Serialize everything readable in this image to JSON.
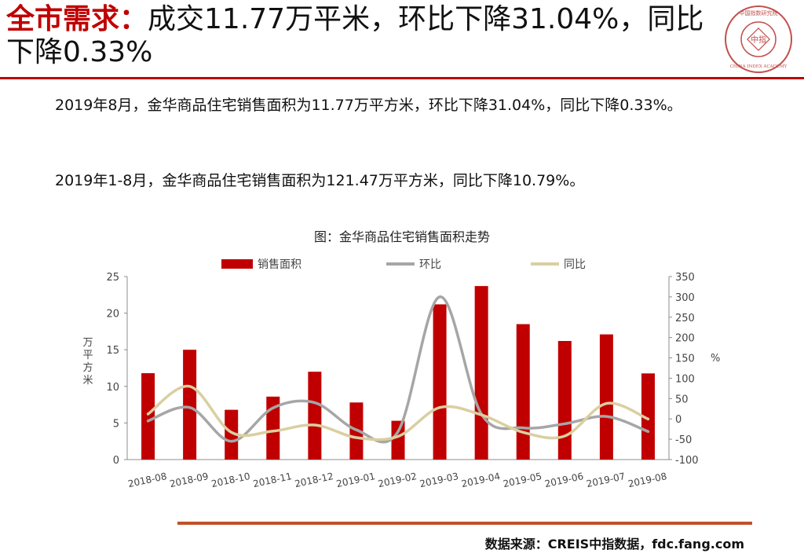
{
  "header": {
    "title_red": "全市需求：",
    "title_rest": "成交11.77万平米，环比下降31.04%，同比下降0.33%"
  },
  "logo": {
    "center_text": "中指",
    "ring_text": "CHINA INDEX ACADEMY",
    "top_text": "中国指数研究院"
  },
  "body": {
    "para1": "2019年8月，金华商品住宅销售面积为11.77万平方米，环比下降31.04%，同比下降0.33%。",
    "para2": "2019年1-8月，金华商品住宅销售面积为121.47万平方米，同比下降10.79%。"
  },
  "chart_data": {
    "type": "bar",
    "title": "图：金华商品住宅销售面积走势",
    "categories": [
      "2018-08",
      "2018-09",
      "2018-10",
      "2018-11",
      "2018-12",
      "2019-01",
      "2019-02",
      "2019-03",
      "2019-04",
      "2019-05",
      "2019-06",
      "2019-07",
      "2019-08"
    ],
    "series": [
      {
        "name": "销售面积",
        "type": "bar",
        "axis": "left",
        "color": "#c00000",
        "values": [
          11.8,
          15.0,
          6.8,
          8.6,
          12.0,
          7.8,
          5.3,
          21.2,
          23.7,
          18.5,
          16.2,
          17.1,
          11.77
        ]
      },
      {
        "name": "环比",
        "type": "line",
        "axis": "right",
        "color": "#a6a6a6",
        "values": [
          -5,
          28,
          -55,
          27,
          40,
          -27,
          -31,
          300,
          12,
          -22,
          -12,
          6,
          -31.04
        ]
      },
      {
        "name": "同比",
        "type": "line",
        "axis": "right",
        "color": "#d9cfa0",
        "values": [
          12,
          80,
          -33,
          -30,
          -15,
          -46,
          -43,
          28,
          10,
          -33,
          -42,
          38,
          -0.33
        ]
      }
    ],
    "ylabel_left": "万平方米",
    "ylabel_right": "%",
    "ylim_left": [
      0,
      25
    ],
    "yticks_left": [
      0,
      5,
      10,
      15,
      20,
      25
    ],
    "ylim_right": [
      -100,
      350
    ],
    "yticks_right": [
      -100,
      -50,
      0,
      50,
      100,
      150,
      200,
      250,
      300,
      350
    ],
    "legend_position": "top",
    "grid": false
  },
  "footer": {
    "source": "数据来源：CREIS中指数据，fdc.fang.com"
  }
}
